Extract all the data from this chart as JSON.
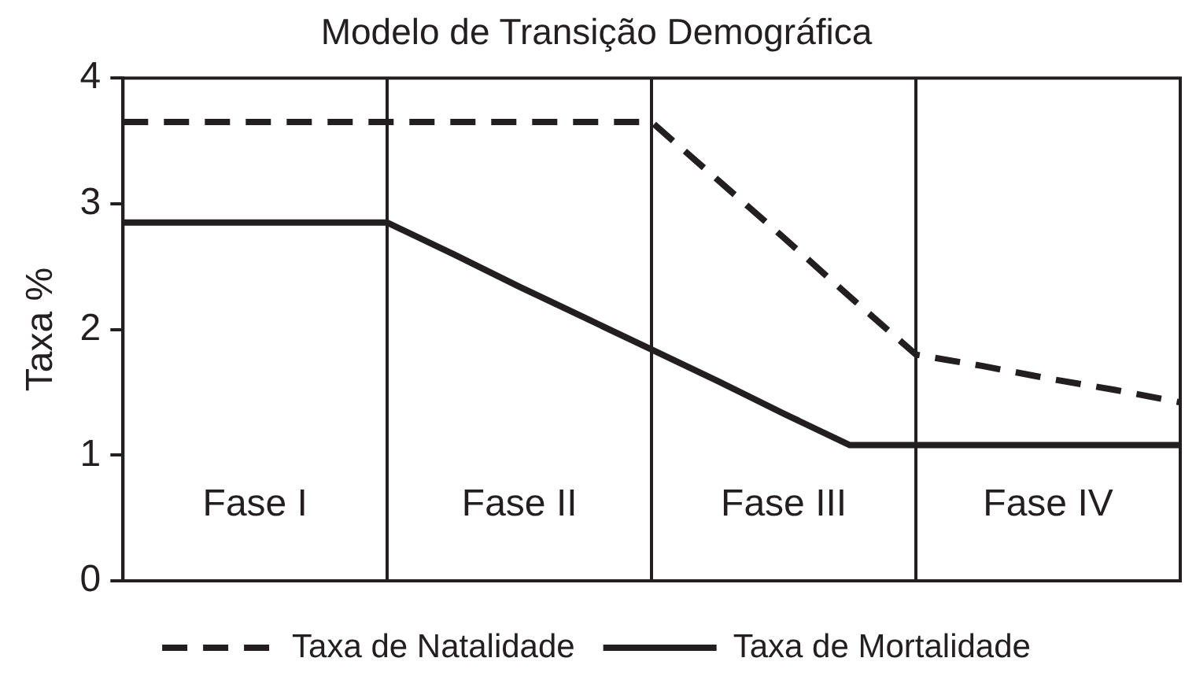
{
  "chart_data": {
    "type": "line",
    "title": "Modelo de Transição Demográfica",
    "ylabel": "Taxa %",
    "categories": [
      null,
      null,
      "Fase I",
      null,
      null,
      null,
      "Fase II",
      null,
      null,
      null,
      "Fase III",
      null,
      null,
      null,
      "Fase IV",
      null,
      null
    ],
    "ylim": [
      0,
      4
    ],
    "yticks": [
      0,
      1,
      2,
      3,
      4
    ],
    "legend": "bottom",
    "grid": "x",
    "marker": "none",
    "series": [
      {
        "name": "Taxa de Natalidade",
        "color": "#231f20",
        "line_style": "dashed",
        "values": [
          3.65,
          3.65,
          3.65,
          3.65,
          3.65,
          3.65,
          3.65,
          3.65,
          3.65,
          3.19,
          2.73,
          2.26,
          1.8,
          1.71,
          1.61,
          1.52,
          1.42
        ]
      },
      {
        "name": "Taxa de Mortalidade",
        "color": "#231f20",
        "line_style": "solid",
        "values": [
          2.85,
          2.85,
          2.85,
          2.85,
          2.85,
          2.6,
          2.34,
          2.09,
          1.84,
          1.59,
          1.33,
          1.08,
          1.08,
          1.08,
          1.08,
          1.08,
          1.08
        ]
      }
    ]
  }
}
